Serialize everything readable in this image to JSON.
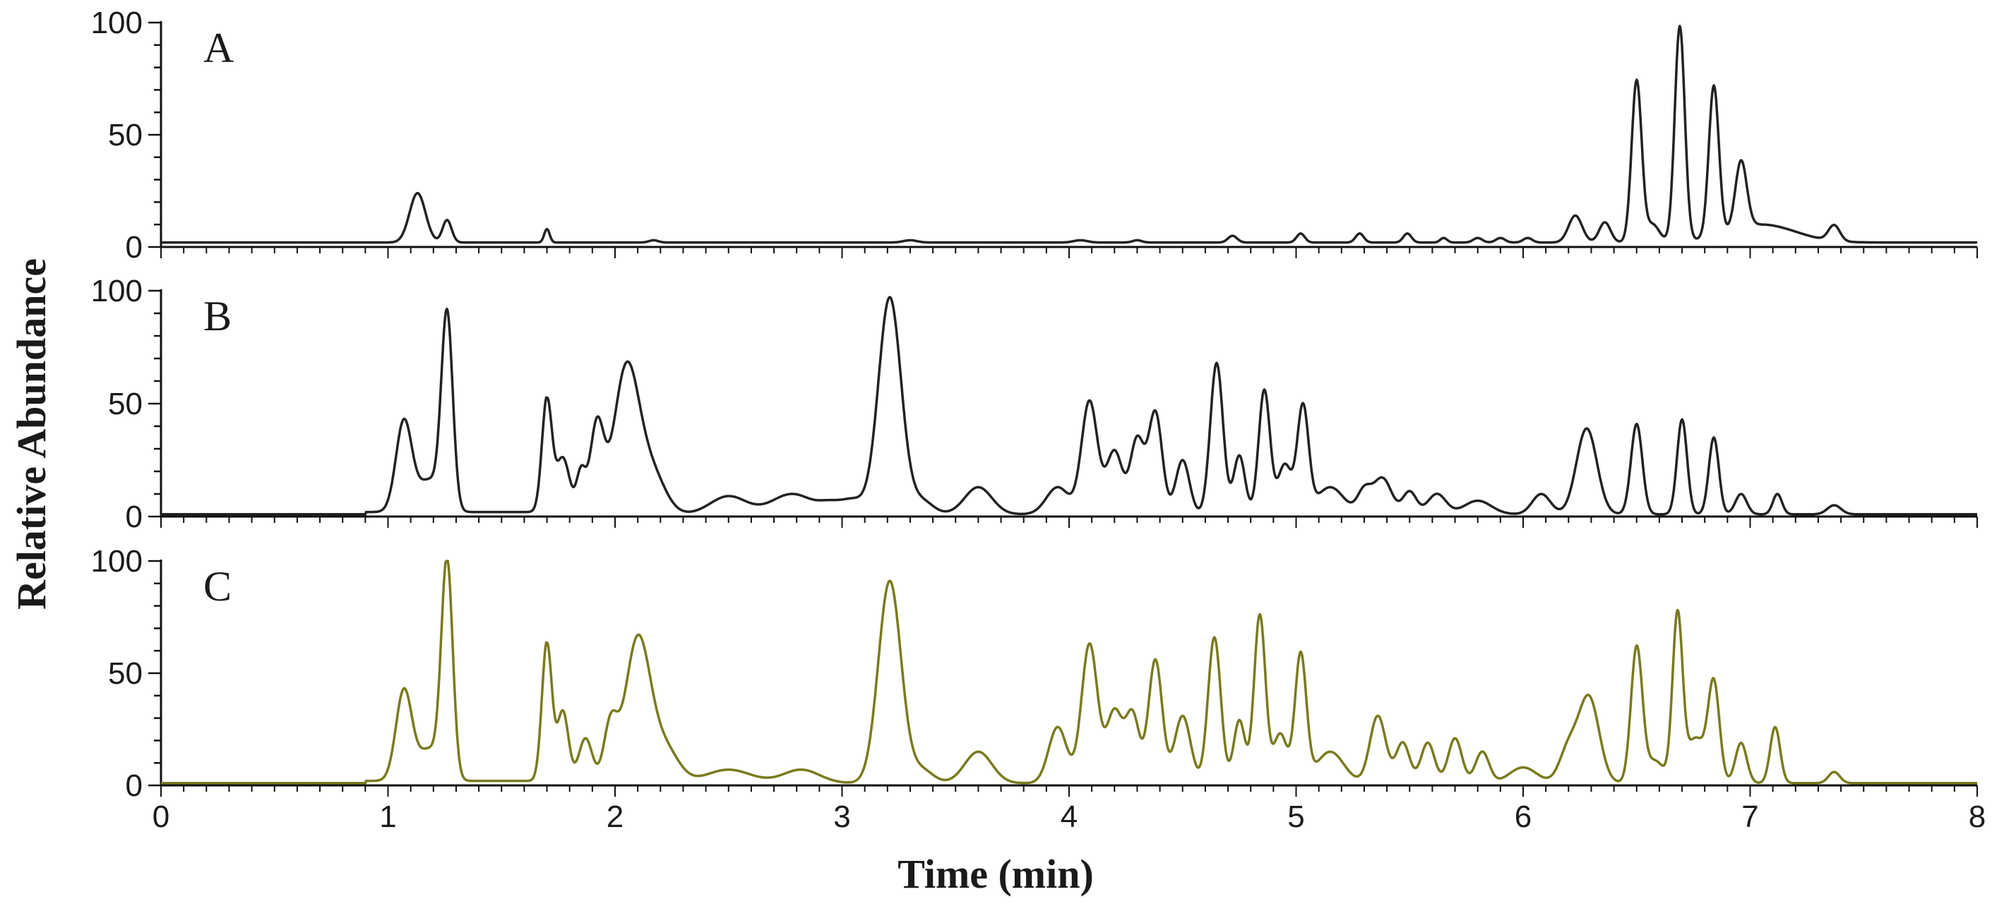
{
  "chart_data": {
    "type": "line",
    "xlabel": "Time (min)",
    "ylabel": "Relative Abundance",
    "xlim": [
      0,
      8
    ],
    "x_ticks": [
      "0",
      "1",
      "2",
      "3",
      "4",
      "5",
      "6",
      "7",
      "8"
    ],
    "y_ticks": [
      "0",
      "50",
      "100"
    ],
    "ylim": [
      0,
      100
    ],
    "grid": false,
    "panels": [
      {
        "label": "A",
        "color": "#222222",
        "baseline": 2,
        "peaks": [
          [
            1.13,
            22,
            0.035
          ],
          [
            1.26,
            10,
            0.02
          ],
          [
            1.7,
            6,
            0.012
          ],
          [
            2.17,
            1,
            0.02
          ],
          [
            3.3,
            1,
            0.03
          ],
          [
            4.05,
            1,
            0.03
          ],
          [
            4.3,
            1,
            0.02
          ],
          [
            4.72,
            3,
            0.02
          ],
          [
            5.02,
            4,
            0.018
          ],
          [
            5.28,
            4,
            0.018
          ],
          [
            5.49,
            4,
            0.018
          ],
          [
            5.65,
            2,
            0.015
          ],
          [
            5.8,
            2,
            0.02
          ],
          [
            5.9,
            2,
            0.02
          ],
          [
            6.02,
            2,
            0.02
          ],
          [
            6.23,
            12,
            0.03
          ],
          [
            6.36,
            9,
            0.025
          ],
          [
            6.5,
            72,
            0.022
          ],
          [
            6.57,
            8,
            0.03
          ],
          [
            6.69,
            96,
            0.022
          ],
          [
            6.84,
            67,
            0.022
          ],
          [
            6.96,
            30,
            0.025
          ],
          [
            7.05,
            8,
            0.15
          ],
          [
            7.37,
            7,
            0.025
          ]
        ]
      },
      {
        "label": "B",
        "color": "#222222",
        "baseline": 1,
        "peaks": [
          [
            1.07,
            40,
            0.035
          ],
          [
            1.18,
            14,
            0.05
          ],
          [
            1.26,
            86,
            0.025
          ],
          [
            1.7,
            50,
            0.022
          ],
          [
            1.77,
            25,
            0.03
          ],
          [
            1.85,
            18,
            0.02
          ],
          [
            1.92,
            39,
            0.03
          ],
          [
            2.05,
            64,
            0.055
          ],
          [
            2.16,
            18,
            0.06
          ],
          [
            2.5,
            8,
            0.08
          ],
          [
            2.78,
            9,
            0.09
          ],
          [
            2.95,
            4,
            0.05
          ],
          [
            3.05,
            6,
            0.05
          ],
          [
            3.21,
            96,
            0.05
          ],
          [
            3.35,
            6,
            0.05
          ],
          [
            3.6,
            12,
            0.06
          ],
          [
            3.95,
            12,
            0.05
          ],
          [
            4.09,
            50,
            0.035
          ],
          [
            4.2,
            28,
            0.035
          ],
          [
            4.3,
            33,
            0.03
          ],
          [
            4.38,
            45,
            0.03
          ],
          [
            4.5,
            24,
            0.03
          ],
          [
            4.65,
            67,
            0.028
          ],
          [
            4.75,
            26,
            0.025
          ],
          [
            4.86,
            55,
            0.025
          ],
          [
            4.95,
            22,
            0.03
          ],
          [
            5.03,
            47,
            0.025
          ],
          [
            5.15,
            12,
            0.06
          ],
          [
            5.3,
            10,
            0.03
          ],
          [
            5.38,
            16,
            0.04
          ],
          [
            5.5,
            10,
            0.03
          ],
          [
            5.62,
            9,
            0.04
          ],
          [
            5.8,
            6,
            0.06
          ],
          [
            6.08,
            9,
            0.04
          ],
          [
            6.28,
            38,
            0.045
          ],
          [
            6.5,
            40,
            0.025
          ],
          [
            6.7,
            42,
            0.022
          ],
          [
            6.84,
            34,
            0.022
          ],
          [
            6.96,
            9,
            0.025
          ],
          [
            7.12,
            9,
            0.02
          ],
          [
            7.37,
            4,
            0.03
          ]
        ]
      },
      {
        "label": "C",
        "color": "#7a7a1e",
        "baseline": 1,
        "peaks": [
          [
            1.07,
            40,
            0.035
          ],
          [
            1.18,
            14,
            0.05
          ],
          [
            1.26,
            96,
            0.025
          ],
          [
            1.7,
            62,
            0.022
          ],
          [
            1.77,
            32,
            0.025
          ],
          [
            1.87,
            20,
            0.03
          ],
          [
            1.98,
            25,
            0.03
          ],
          [
            2.1,
            64,
            0.055
          ],
          [
            2.22,
            15,
            0.06
          ],
          [
            2.5,
            6,
            0.1
          ],
          [
            2.82,
            6,
            0.08
          ],
          [
            3.21,
            90,
            0.05
          ],
          [
            3.35,
            6,
            0.05
          ],
          [
            3.6,
            14,
            0.06
          ],
          [
            3.95,
            25,
            0.04
          ],
          [
            4.09,
            62,
            0.035
          ],
          [
            4.2,
            32,
            0.035
          ],
          [
            4.28,
            30,
            0.03
          ],
          [
            4.38,
            55,
            0.03
          ],
          [
            4.5,
            30,
            0.035
          ],
          [
            4.64,
            65,
            0.028
          ],
          [
            4.75,
            28,
            0.025
          ],
          [
            4.84,
            75,
            0.025
          ],
          [
            4.93,
            22,
            0.03
          ],
          [
            5.02,
            57,
            0.025
          ],
          [
            5.15,
            14,
            0.06
          ],
          [
            5.36,
            30,
            0.035
          ],
          [
            5.47,
            18,
            0.03
          ],
          [
            5.58,
            18,
            0.03
          ],
          [
            5.7,
            20,
            0.03
          ],
          [
            5.82,
            14,
            0.03
          ],
          [
            6.0,
            7,
            0.06
          ],
          [
            6.2,
            15,
            0.04
          ],
          [
            6.29,
            38,
            0.045
          ],
          [
            6.5,
            60,
            0.025
          ],
          [
            6.58,
            10,
            0.04
          ],
          [
            6.68,
            74,
            0.022
          ],
          [
            6.76,
            20,
            0.04
          ],
          [
            6.84,
            44,
            0.025
          ],
          [
            6.96,
            18,
            0.025
          ],
          [
            7.11,
            25,
            0.022
          ],
          [
            7.37,
            5,
            0.025
          ]
        ]
      }
    ]
  }
}
